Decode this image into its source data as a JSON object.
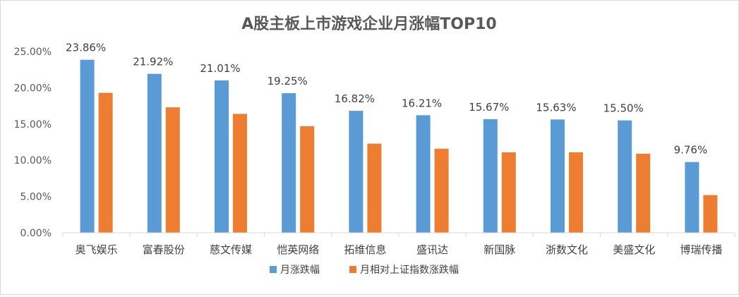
{
  "chart_data": {
    "type": "bar",
    "title": "A股主板上市游戏企业月涨幅TOP10",
    "xlabel": "",
    "ylabel": "",
    "categories": [
      "奥飞娱乐",
      "富春股份",
      "慈文传媒",
      "恺英网络",
      "拓维信息",
      "盛讯达",
      "新国脉",
      "浙数文化",
      "美盛文化",
      "博瑞传播"
    ],
    "series": [
      {
        "name": "月涨跌幅",
        "color": "#5b9bd5",
        "values": [
          23.86,
          21.92,
          21.01,
          19.25,
          16.82,
          16.21,
          15.67,
          15.63,
          15.5,
          9.76
        ],
        "data_labels": [
          "23.86%",
          "21.92%",
          "21.01%",
          "19.25%",
          "16.82%",
          "16.21%",
          "15.67%",
          "15.63%",
          "15.50%",
          "9.76%"
        ]
      },
      {
        "name": "月相对上证指数涨跌幅",
        "color": "#ed7d31",
        "values": [
          19.3,
          17.3,
          16.4,
          14.7,
          12.3,
          11.6,
          11.1,
          11.1,
          10.9,
          5.2
        ]
      }
    ],
    "ylim": [
      0,
      25
    ],
    "yticks": [
      0,
      5,
      10,
      15,
      20,
      25
    ],
    "ytick_labels": [
      "0.00%",
      "5.00%",
      "10.00%",
      "15.00%",
      "20.00%",
      "25.00%"
    ],
    "grid": false,
    "legend_position": "bottom"
  }
}
